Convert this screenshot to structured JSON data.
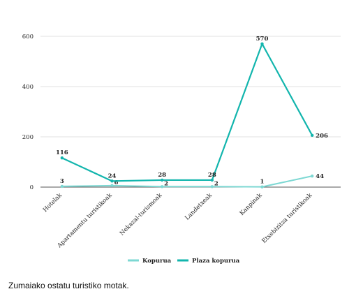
{
  "chart_data": {
    "type": "line",
    "categories": [
      "Hotelak",
      "Apartamentu turistikoak",
      "Nekazal-turismoak",
      "Landetxeak",
      "Kanpinak",
      "Etxebizitza turistikoak"
    ],
    "series": [
      {
        "name": "Kopurua",
        "values": [
          3,
          6,
          2,
          2,
          1,
          44
        ],
        "color": "#7dd8d3"
      },
      {
        "name": "Plaza kopurua",
        "values": [
          116,
          24,
          28,
          28,
          570,
          206
        ],
        "color": "#12b5ad"
      }
    ],
    "data_labels": {
      "Kopurua": [
        "3",
        "6",
        "2",
        "2",
        "1",
        "44"
      ],
      "Plaza kopurua": [
        "116",
        "24",
        "28",
        "28",
        "570",
        "206"
      ]
    },
    "yticks": [
      0,
      200,
      400,
      600
    ],
    "ylim": [
      0,
      600
    ],
    "grid": true,
    "legend_position": "bottom"
  },
  "caption": "Zumaiako ostatu turistiko motak."
}
